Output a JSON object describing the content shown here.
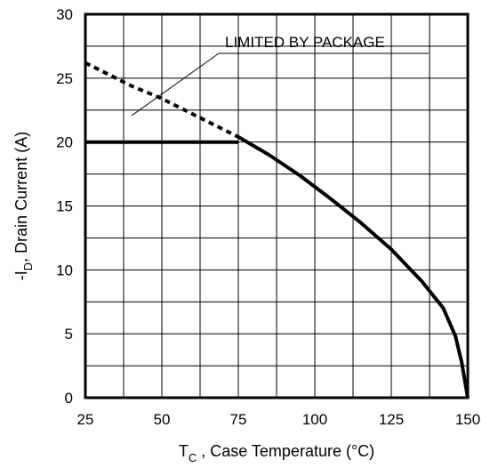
{
  "chart_data": {
    "type": "line",
    "xlabel": {
      "main": "T",
      "sub": "C",
      "rest": " , Case Temperature (°C)"
    },
    "ylabel": {
      "pre": "-I",
      "sub": "D",
      "rest": ",  Drain Current  (A)"
    },
    "xlim": [
      25,
      150
    ],
    "ylim": [
      0,
      30
    ],
    "x_ticks": [
      "25",
      "50",
      "75",
      "100",
      "125",
      "150"
    ],
    "y_ticks": [
      "0",
      "5",
      "10",
      "15",
      "20",
      "25",
      "30"
    ],
    "grid": true,
    "annotation": "LIMITED BY PACKAGE",
    "series": [
      {
        "style": "dashed",
        "x": [
          25,
          40,
          50,
          60,
          70,
          75
        ],
        "y": [
          26.2,
          24.4,
          23.4,
          22.2,
          21.0,
          20.4
        ]
      },
      {
        "style": "solid",
        "x": [
          25,
          75
        ],
        "y": [
          20,
          20
        ]
      },
      {
        "style": "solid",
        "x": [
          75,
          85,
          95,
          105,
          115,
          125,
          135,
          142,
          146,
          148,
          150
        ],
        "y": [
          20.4,
          19.0,
          17.4,
          15.6,
          13.7,
          11.6,
          9.1,
          7.0,
          4.8,
          2.8,
          0
        ]
      }
    ]
  }
}
